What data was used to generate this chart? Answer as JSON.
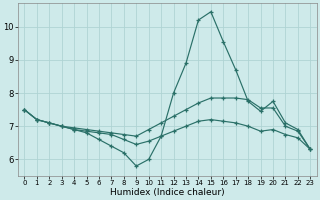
{
  "xlabel": "Humidex (Indice chaleur)",
  "background_color": "#ceeaea",
  "line_color": "#2a7068",
  "grid_color": "#afd4d4",
  "xlim": [
    -0.5,
    23.5
  ],
  "ylim": [
    5.5,
    10.7
  ],
  "yticks": [
    6,
    7,
    8,
    9,
    10
  ],
  "xticks": [
    0,
    1,
    2,
    3,
    4,
    5,
    6,
    7,
    8,
    9,
    10,
    11,
    12,
    13,
    14,
    15,
    16,
    17,
    18,
    19,
    20,
    21,
    22,
    23
  ],
  "series": [
    {
      "x": [
        0,
        1,
        2,
        3,
        4,
        5,
        6,
        7,
        8,
        9,
        10,
        11,
        12,
        13,
        14,
        15,
        16,
        17,
        18,
        19,
        20,
        21,
        22,
        23
      ],
      "y": [
        7.5,
        7.2,
        7.1,
        7.0,
        6.9,
        6.8,
        6.6,
        6.4,
        6.2,
        5.8,
        6.0,
        6.7,
        8.0,
        8.9,
        10.2,
        10.45,
        9.55,
        8.7,
        7.75,
        7.45,
        7.75,
        7.1,
        6.9,
        6.3
      ]
    },
    {
      "x": [
        0,
        1,
        2,
        3,
        4,
        5,
        6,
        7,
        8,
        9,
        10,
        11,
        12,
        13,
        14,
        15,
        16,
        17,
        18,
        19,
        20,
        21,
        22,
        23
      ],
      "y": [
        7.5,
        7.2,
        7.1,
        7.0,
        6.95,
        6.9,
        6.85,
        6.8,
        6.75,
        6.7,
        6.9,
        7.1,
        7.3,
        7.5,
        7.7,
        7.85,
        7.85,
        7.85,
        7.8,
        7.55,
        7.55,
        7.0,
        6.85,
        6.3
      ]
    },
    {
      "x": [
        0,
        1,
        2,
        3,
        4,
        5,
        6,
        7,
        8,
        9,
        10,
        11,
        12,
        13,
        14,
        15,
        16,
        17,
        18,
        19,
        20,
        21,
        22,
        23
      ],
      "y": [
        7.5,
        7.2,
        7.1,
        7.0,
        6.9,
        6.85,
        6.8,
        6.75,
        6.6,
        6.45,
        6.55,
        6.7,
        6.85,
        7.0,
        7.15,
        7.2,
        7.15,
        7.1,
        7.0,
        6.85,
        6.9,
        6.75,
        6.65,
        6.3
      ]
    }
  ]
}
